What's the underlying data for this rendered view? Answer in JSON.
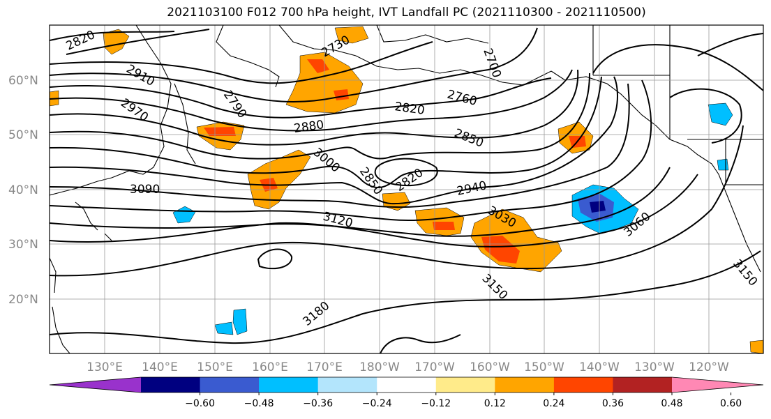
{
  "title": "2021103100 F012 700 hPa height, IVT Landfall PC (2021110300 - 2021110500)",
  "latitude_labels": [
    "60°N",
    "50°N",
    "40°N",
    "30°N",
    "20°N"
  ],
  "longitude_labels": [
    "130°E",
    "140°E",
    "150°E",
    "160°E",
    "170°E",
    "180°W",
    "170°W",
    "160°W",
    "150°W",
    "140°W",
    "130°W",
    "120°W"
  ],
  "colorbar": {
    "colors": [
      "#9932cc",
      "#000080",
      "#3a5bd0",
      "#00bfff",
      "#b3e5fc",
      "#ffffff",
      "#ffeb8a",
      "#ffa500",
      "#ff4500",
      "#b22222",
      "#ff88b4"
    ],
    "tick_labels": [
      "−0.60",
      "−0.48",
      "−0.36",
      "−0.24",
      "−0.12",
      "0.12",
      "0.24",
      "0.36",
      "0.48",
      "0.60"
    ]
  },
  "contour_labels": [
    "2820",
    "2730",
    "2700",
    "2910",
    "2790",
    "2760",
    "2970",
    "2820",
    "2880",
    "2850",
    "3000",
    "2850",
    "2820",
    "3090",
    "2940",
    "3030",
    "3120",
    "3060",
    "3150",
    "3150",
    "3180"
  ],
  "colors": {
    "contour": "#000000",
    "grid": "#999999",
    "frame": "#000000"
  }
}
